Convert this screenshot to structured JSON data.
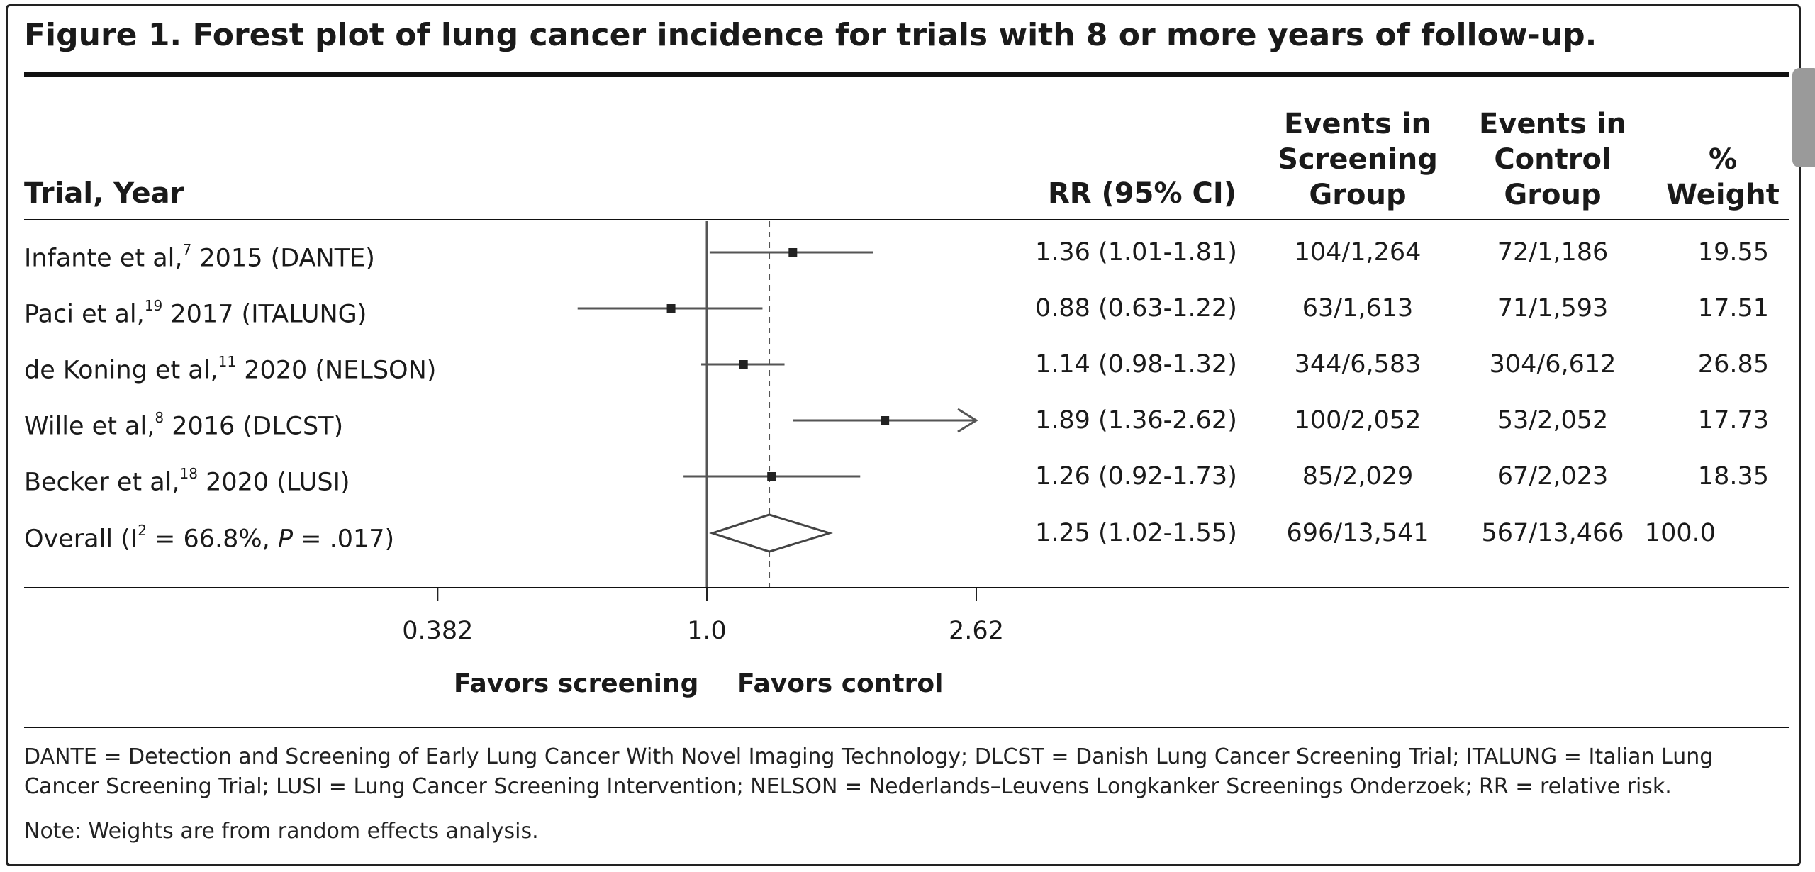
{
  "title": "Figure 1. Forest plot of lung cancer incidence for trials with 8 or more years of follow-up.",
  "headers": {
    "trial": "Trial, Year",
    "rr": "RR (95% CI)",
    "screening": [
      "Events in",
      "Screening",
      "Group"
    ],
    "control": [
      "Events in",
      "Control",
      "Group"
    ],
    "weight": [
      "%",
      "Weight"
    ]
  },
  "favors": {
    "left": "Favors screening",
    "right": "Favors control"
  },
  "chart_data": {
    "type": "forest",
    "x_scale": "log",
    "x_ticks": [
      0.382,
      1.0,
      2.62
    ],
    "x_tick_labels": [
      "0.382",
      "1.0",
      "2.62"
    ],
    "reference_line": 1.0,
    "overall_line": 1.25,
    "rows": [
      {
        "label_pre": "Infante et al,",
        "sup": "7",
        "label_post": " 2015 (DANTE)",
        "rr": 1.36,
        "lo": 1.01,
        "hi": 1.81,
        "rr_text": "1.36 (1.01-1.81)",
        "screening": "104/1,264",
        "control": "72/1,186",
        "weight": "19.55"
      },
      {
        "label_pre": "Paci et al,",
        "sup": "19",
        "label_post": " 2017 (ITALUNG)",
        "rr": 0.88,
        "lo": 0.63,
        "hi": 1.22,
        "rr_text": "0.88 (0.63-1.22)",
        "screening": "63/1,613",
        "control": "71/1,593",
        "weight": "17.51"
      },
      {
        "label_pre": "de Koning et al,",
        "sup": "11",
        "label_post": " 2020 (NELSON)",
        "rr": 1.14,
        "lo": 0.98,
        "hi": 1.32,
        "rr_text": "1.14 (0.98-1.32)",
        "screening": "344/6,583",
        "control": "304/6,612",
        "weight": "26.85"
      },
      {
        "label_pre": "Wille et al,",
        "sup": "8",
        "label_post": " 2016 (DLCST)",
        "rr": 1.89,
        "lo": 1.36,
        "hi": 2.62,
        "rr_text": "1.89 (1.36-2.62)",
        "screening": "100/2,052",
        "control": "53/2,052",
        "weight": "17.73"
      },
      {
        "label_pre": "Becker et al,",
        "sup": "18",
        "label_post": " 2020 (LUSI)",
        "rr": 1.26,
        "lo": 0.92,
        "hi": 1.73,
        "rr_text": "1.26 (0.92-1.73)",
        "screening": "85/2,029",
        "control": "67/2,023",
        "weight": "18.35"
      }
    ],
    "overall": {
      "label_a": "Overall (I",
      "label_sup": "2",
      "label_b": " = 66.8%, ",
      "label_p": "P",
      "label_c": " = .017)",
      "rr": 1.25,
      "lo": 1.02,
      "hi": 1.55,
      "rr_text": "1.25 (1.02-1.55)",
      "screening": "696/13,541",
      "control": "567/13,466",
      "weight": "100.0"
    }
  },
  "footnote": "DANTE = Detection and Screening of Early Lung Cancer With Novel Imaging Technology; DLCST = Danish Lung Cancer Screening Trial; ITALUNG = Italian Lung Cancer Screening Trial; LUSI = Lung Cancer Screening Intervention; NELSON = Nederlands–Leuvens Longkanker Screenings Onderzoek; RR = relative risk.",
  "note": "Note: Weights are from random effects analysis."
}
